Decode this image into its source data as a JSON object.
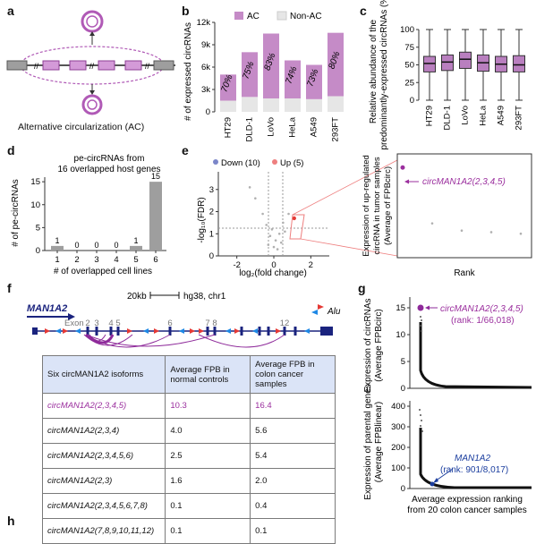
{
  "panels": {
    "a": "a",
    "b": "b",
    "c": "c",
    "d": "d",
    "e": "e",
    "f": "f",
    "g": "g",
    "h": "h"
  },
  "panel_a": {
    "caption": "Alternative circularization (AC)"
  },
  "panel_f": {
    "scale_label": "20kb",
    "assembly": "hg38, chr1",
    "gene": "MAN1A2",
    "exon_prefix": "Exon",
    "exon_labels": [
      "2",
      "3",
      "4",
      "5",
      "6",
      "7",
      "8",
      "12"
    ],
    "alu_label": "Alu",
    "colors": {
      "sense_alu": "#e53935",
      "antisense_alu": "#1e88e5",
      "gene": "#1a237e",
      "circ_main": "#8e2a9a"
    },
    "table": {
      "headers": [
        "Six circMAN1A2 isoforms",
        "Average FPB in normal controls",
        "Average FPB in colon cancer samples"
      ],
      "rows": [
        {
          "name": "circMAN1A2(2,3,4,5)",
          "normal": "10.3",
          "cancer": "16.4"
        },
        {
          "name": "circMAN1A2(2,3,4)",
          "normal": "4.0",
          "cancer": "5.6"
        },
        {
          "name": "circMAN1A2(2,3,4,5,6)",
          "normal": "2.5",
          "cancer": "5.4"
        },
        {
          "name": "circMAN1A2(2,3)",
          "normal": "1.6",
          "cancer": "2.0"
        },
        {
          "name": "circMAN1A2(2,3,4,5,6,7,8)",
          "normal": "0.1",
          "cancer": "0.4"
        },
        {
          "name": "circMAN1A2(7,8,9,10,11,12)",
          "normal": "0.1",
          "cancer": "0.1"
        }
      ]
    }
  },
  "chart_data": [
    {
      "panel": "b",
      "type": "bar",
      "categories": [
        "HT29",
        "DLD-1",
        "LoVo",
        "HeLa",
        "A549",
        "293FT"
      ],
      "series": [
        {
          "name": "AC",
          "values": [
            3500,
            6000,
            8700,
            5100,
            4600,
            8500
          ]
        },
        {
          "name": "Non-AC",
          "values": [
            1500,
            2000,
            1800,
            1800,
            1700,
            2100
          ]
        }
      ],
      "labels": [
        "70%",
        "75%",
        "83%",
        "74%",
        "73%",
        "80%"
      ],
      "ylabel": "# of expressed circRNAs",
      "yticks": [
        "0",
        "3k",
        "6k",
        "9k",
        "12k"
      ],
      "ylim": [
        0,
        12000
      ],
      "colors": {
        "AC": "#c58bc7",
        "Non-AC": "#e6e6e6"
      },
      "legend": "top"
    },
    {
      "panel": "c",
      "type": "box",
      "categories": [
        "HT29",
        "DLD-1",
        "LoVo",
        "HeLa",
        "A549",
        "293FT"
      ],
      "boxes": [
        [
          0,
          40,
          52,
          62,
          100
        ],
        [
          0,
          42,
          54,
          64,
          100
        ],
        [
          0,
          45,
          58,
          68,
          100
        ],
        [
          0,
          41,
          53,
          64,
          100
        ],
        [
          0,
          40,
          51,
          62,
          100
        ],
        [
          0,
          40,
          50,
          63,
          100
        ]
      ],
      "ylabel": "Relative abundance of the predominantly-expressed circRNAs (%)",
      "yticks": [
        "0",
        "25",
        "50",
        "75",
        "100"
      ],
      "ylim": [
        0,
        100
      ],
      "color": "#b97fbf"
    },
    {
      "panel": "d",
      "type": "bar",
      "title": "pe-circRNAs from\n16 overlapped host genes",
      "categories": [
        "1",
        "2",
        "3",
        "4",
        "5",
        "6"
      ],
      "values": [
        1,
        0,
        0,
        0,
        1,
        15
      ],
      "xlabel": "# of overlapped cell lines",
      "ylabel": "# of pe-circRNAs",
      "yticks": [
        "0",
        "5",
        "10",
        "15"
      ],
      "ylim": [
        0,
        16
      ],
      "color": "#9e9e9e"
    },
    {
      "panel": "e",
      "type": "scatter",
      "legend": {
        "down": "Down (10)",
        "up": "Up (5)"
      },
      "xlabel": "log₂(fold change)",
      "ylabel": "-log₁₀(FDR)",
      "xticks": [
        "-2",
        "0",
        "2"
      ],
      "yticks": [
        "0",
        "1",
        "2",
        "3"
      ],
      "points": [
        [
          -1.3,
          3.1
        ],
        [
          -1.0,
          2.6
        ],
        [
          -0.6,
          1.9
        ],
        [
          -0.4,
          1.4
        ],
        [
          -0.2,
          0.9
        ],
        [
          0.0,
          0.4
        ],
        [
          0.1,
          0.7
        ],
        [
          -0.3,
          0.5
        ],
        [
          0.2,
          0.3
        ],
        [
          0.3,
          1.0
        ],
        [
          0.5,
          1.5
        ],
        [
          0.8,
          1.9
        ],
        [
          0.4,
          0.6
        ],
        [
          -0.1,
          1.2
        ],
        [
          0.6,
          1.1
        ]
      ],
      "zoom": {
        "ylabel": "Expression of up-regulated circRNA in tumor samples (Average of FPB circ)",
        "xlabel": "Rank",
        "highlight": "circMAN1A2(2,3,4,5)",
        "ranks": [
          1,
          2,
          3,
          4,
          5
        ],
        "values": [
          16.4,
          5.6,
          4.2,
          3.9,
          3.6
        ]
      }
    },
    {
      "panel": "g-top",
      "type": "scatter",
      "ylabel": "Expression of circRNAs (Average FPB circ)",
      "yticks": [
        "0",
        "5",
        "10",
        "15"
      ],
      "ylim": [
        0,
        17
      ],
      "highlight": "circMAN1A2(2,3,4,5)",
      "highlight_rank": "(rank: 1/66,018)",
      "highlight_value": 16.4
    },
    {
      "panel": "g-bottom",
      "type": "scatter",
      "ylabel": "Expression of parental genes (Average FPB linear)",
      "yticks": [
        "0",
        "100",
        "200",
        "300",
        "400"
      ],
      "ylim": [
        0,
        400
      ],
      "highlight": "MAN1A2",
      "highlight_rank": "(rank: 901/8,017)",
      "xlabel": "Average expression ranking from 20 colon cancer samples"
    }
  ]
}
